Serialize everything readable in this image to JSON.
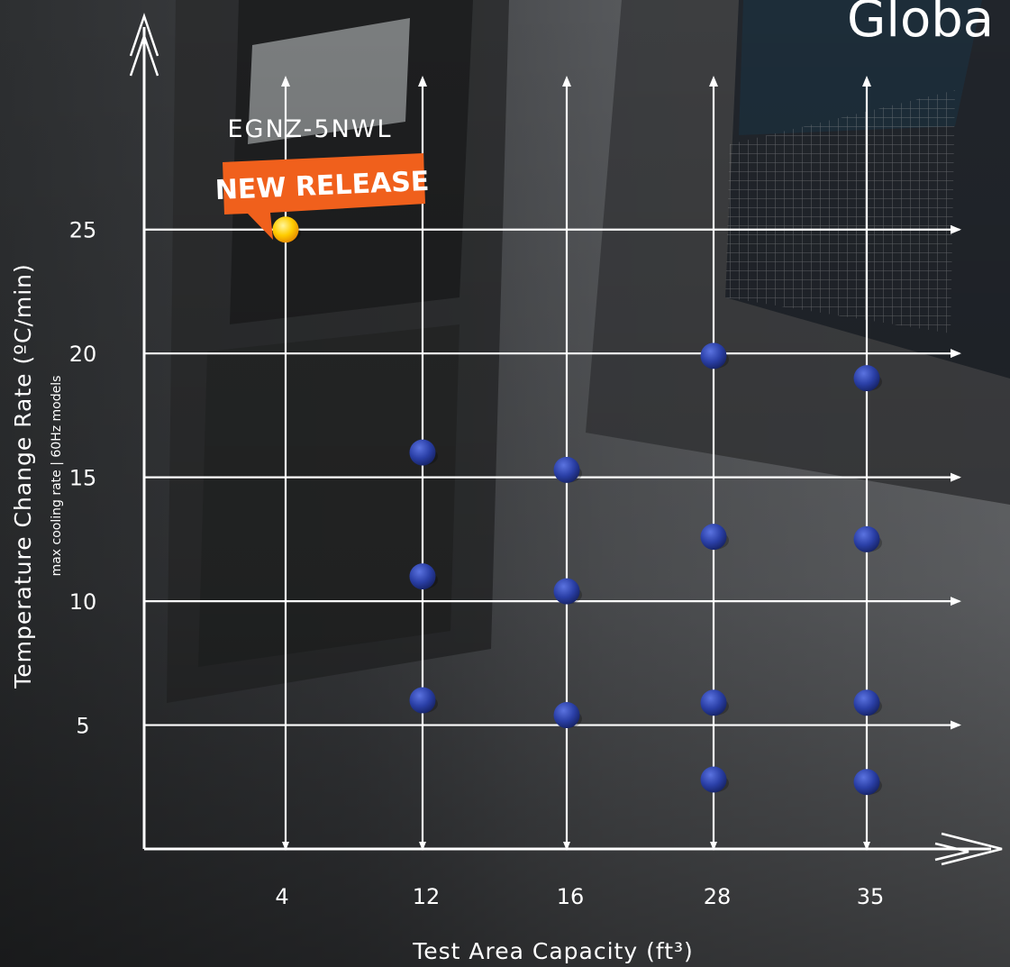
{
  "heading": "Globa",
  "chart_data": {
    "type": "scatter",
    "xlabel": "Test Area Capacity (ft³)",
    "ylabel": "Temperature Change Rate (ºC/min)",
    "ylabel_sub": "max cooling rate | 60Hz models",
    "x_categories": [
      "4",
      "12",
      "16",
      "28",
      "35"
    ],
    "y_ticks": [
      5,
      10,
      15,
      20,
      25
    ],
    "ylim": [
      0,
      27.5
    ],
    "grid": true,
    "points": [
      {
        "x": "4",
        "y": 25,
        "highlight": true
      },
      {
        "x": "12",
        "y": 16
      },
      {
        "x": "12",
        "y": 11
      },
      {
        "x": "12",
        "y": 6
      },
      {
        "x": "16",
        "y": 15.3
      },
      {
        "x": "16",
        "y": 10.4
      },
      {
        "x": "16",
        "y": 5.4
      },
      {
        "x": "28",
        "y": 19.9
      },
      {
        "x": "28",
        "y": 12.6
      },
      {
        "x": "28",
        "y": 5.9
      },
      {
        "x": "28",
        "y": 2.8
      },
      {
        "x": "35",
        "y": 19
      },
      {
        "x": "35",
        "y": 12.5
      },
      {
        "x": "35",
        "y": 5.9
      },
      {
        "x": "35",
        "y": 2.7
      }
    ],
    "annotation": {
      "model": "EGNZ-5NWL",
      "badge": "NEW RELEASE",
      "target_x": "4",
      "target_y": 25
    },
    "colors": {
      "point": "#2a3fa6",
      "highlight": "#ffcc00",
      "badge": "#f0601c",
      "grid": "#ffffff"
    }
  }
}
